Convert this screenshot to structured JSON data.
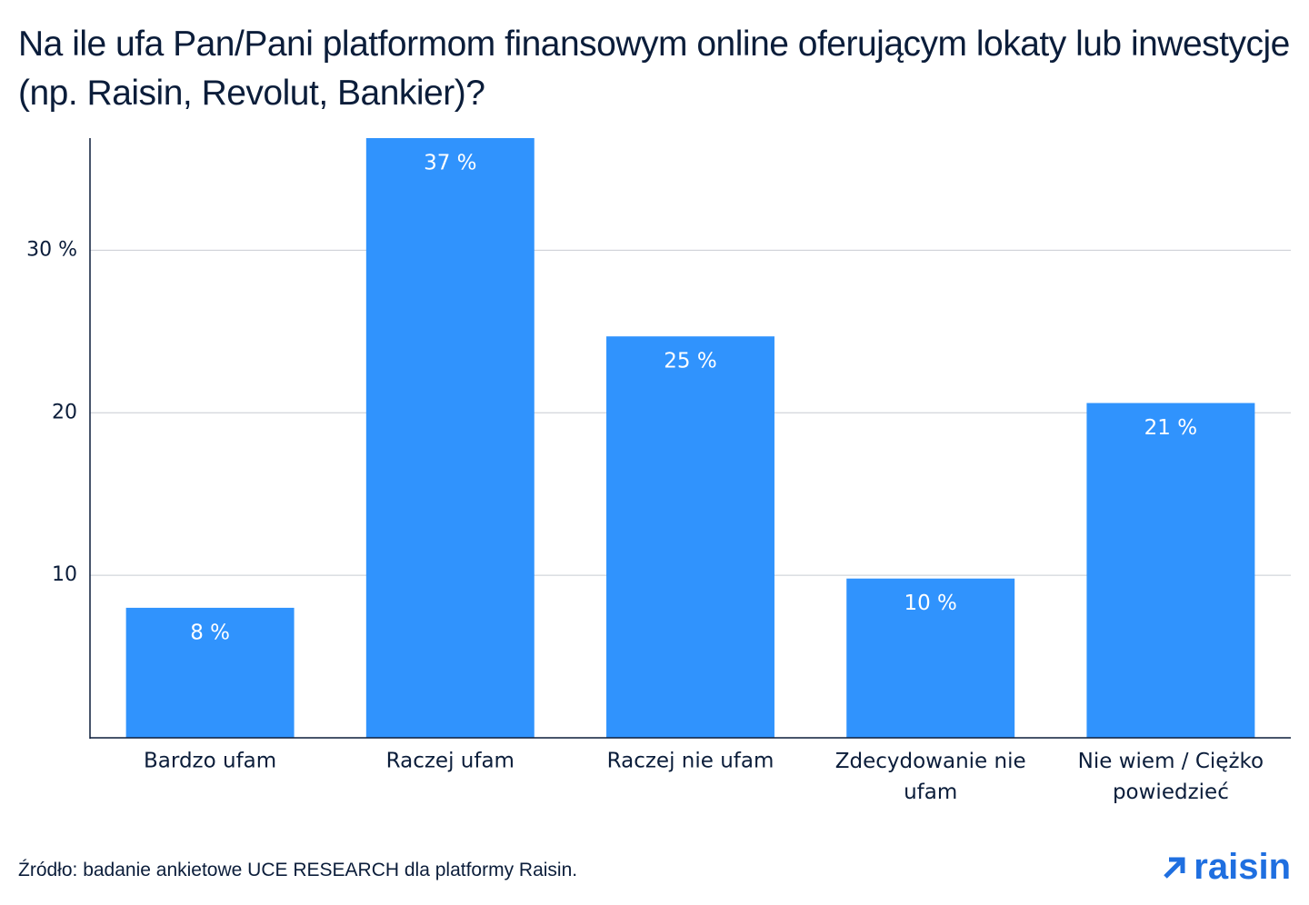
{
  "chart_data": {
    "type": "bar",
    "title": "Na ile ufa Pan/Pani platformom finansowym online oferującym lokaty lub inwestycje (np. Raisin, Revolut, Bankier)?",
    "categories": [
      "Bardzo ufam",
      "Raczej ufam",
      "Raczej nie ufam",
      "Zdecydowanie nie ufam",
      "Nie wiem / Ciężko powiedzieć"
    ],
    "values": [
      8,
      36.9,
      24.7,
      9.8,
      20.6
    ],
    "value_labels": [
      "8 %",
      "37 %",
      "25 %",
      "10 %",
      "21 %"
    ],
    "color": "#3093fd",
    "ylim": [
      0,
      36.9
    ],
    "yticks": [
      10,
      20,
      {
        "value": 30,
        "label": "30 %"
      }
    ],
    "grid": true,
    "source": "Źródło: badanie ankietowe UCE RESEARCH dla platformy Raisin.",
    "logo": "raisin"
  }
}
